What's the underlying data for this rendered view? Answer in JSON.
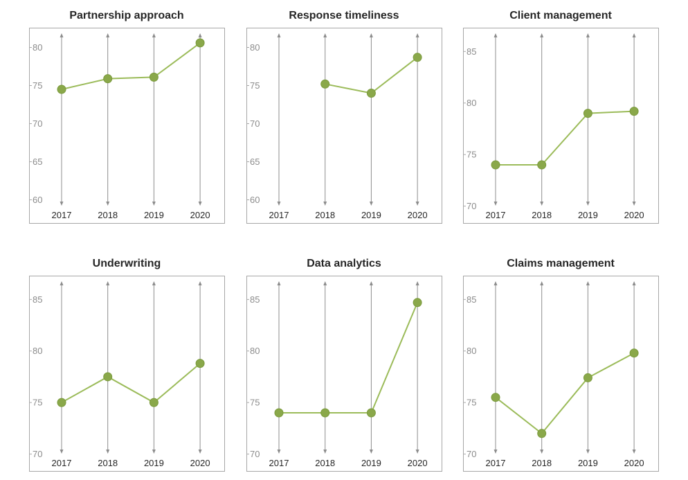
{
  "colors": {
    "series": "#9bbb59",
    "marker": "#8aa84a",
    "axis": "#8c8c8c",
    "frame": "#a6a6a6"
  },
  "chart_data": [
    {
      "type": "line",
      "title": "Partnership approach",
      "categories": [
        "2017",
        "2018",
        "2019",
        "2020"
      ],
      "ylim": [
        58.5,
        81.5
      ],
      "yticks": [
        60,
        65,
        70,
        75,
        80
      ],
      "ytick_labels": [
        "60",
        "65",
        "70",
        "75",
        "80"
      ],
      "series": [
        {
          "values": [
            74.5,
            75.9,
            76.1,
            80.6
          ]
        }
      ]
    },
    {
      "type": "line",
      "title": "Response timeliness",
      "categories": [
        "2017",
        "2018",
        "2019",
        "2020"
      ],
      "ylim": [
        58.5,
        81.5
      ],
      "yticks": [
        60,
        65,
        70,
        75,
        80
      ],
      "ytick_labels": [
        "60",
        "65",
        "70",
        "75",
        "80"
      ],
      "series": [
        {
          "values": [
            null,
            75.2,
            74.0,
            78.7
          ]
        }
      ]
    },
    {
      "type": "line",
      "title": "Client management",
      "categories": [
        "2017",
        "2018",
        "2019",
        "2020"
      ],
      "ylim": [
        69.5,
        86.5
      ],
      "yticks": [
        70,
        75,
        80,
        85
      ],
      "ytick_labels": [
        "70",
        "75",
        "80",
        "85"
      ],
      "series": [
        {
          "values": [
            74.0,
            74.0,
            79.0,
            79.2
          ]
        }
      ]
    },
    {
      "type": "line",
      "title": "Underwriting",
      "categories": [
        "2017",
        "2018",
        "2019",
        "2020"
      ],
      "ylim": [
        69.5,
        86.5
      ],
      "yticks": [
        70,
        75,
        80,
        85
      ],
      "ytick_labels": [
        "70",
        "75",
        "80",
        "85"
      ],
      "series": [
        {
          "values": [
            75.0,
            77.5,
            75.0,
            78.8
          ]
        }
      ]
    },
    {
      "type": "line",
      "title": "Data analytics",
      "categories": [
        "2017",
        "2018",
        "2019",
        "2020"
      ],
      "ylim": [
        69.5,
        86.5
      ],
      "yticks": [
        70,
        75,
        80,
        85
      ],
      "ytick_labels": [
        "70",
        "75",
        "80",
        "85"
      ],
      "series": [
        {
          "values": [
            74.0,
            74.0,
            74.0,
            84.7
          ]
        }
      ]
    },
    {
      "type": "line",
      "title": "Claims management",
      "categories": [
        "2017",
        "2018",
        "2019",
        "2020"
      ],
      "ylim": [
        69.5,
        86.5
      ],
      "yticks": [
        70,
        75,
        80,
        85
      ],
      "ytick_labels": [
        "70",
        "75",
        "80",
        "85"
      ],
      "series": [
        {
          "values": [
            75.5,
            72.0,
            77.4,
            79.8
          ]
        }
      ]
    }
  ]
}
